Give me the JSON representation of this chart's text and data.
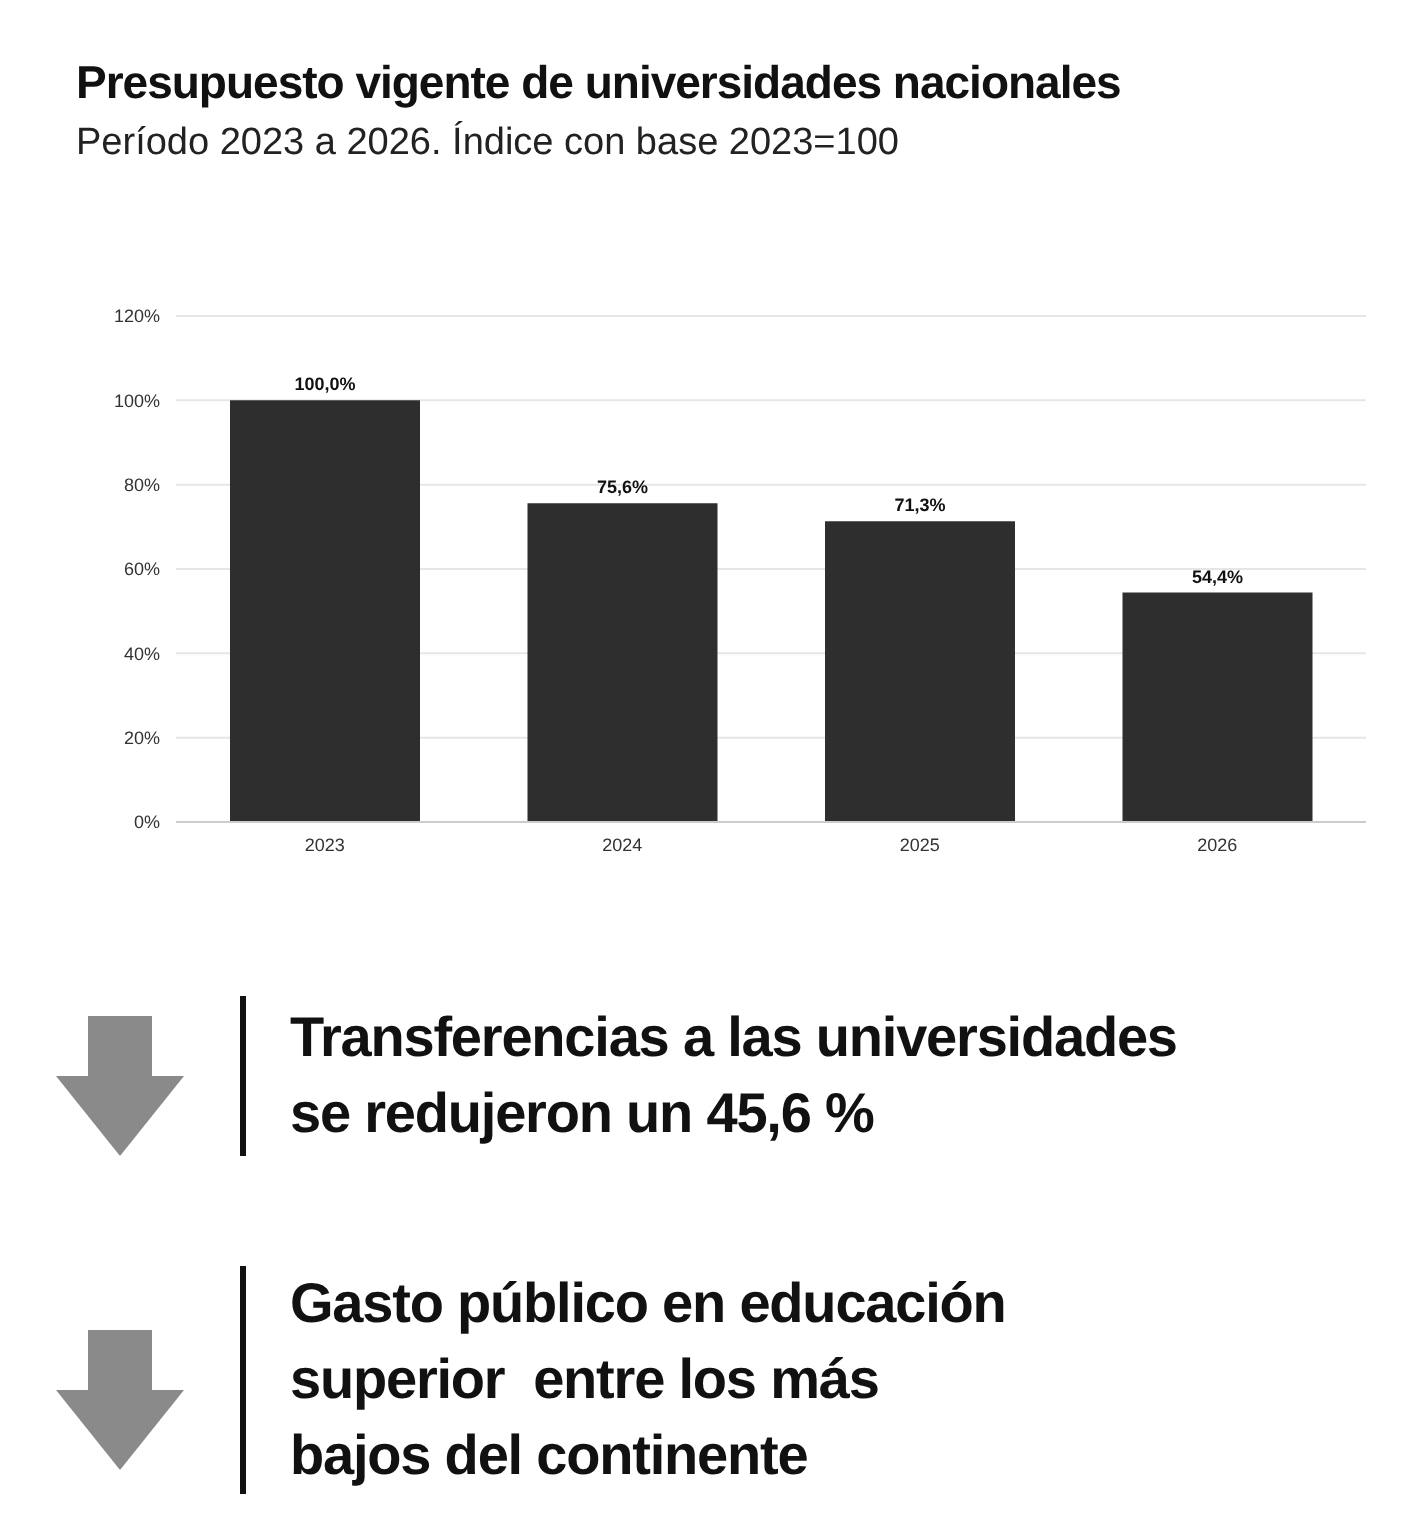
{
  "chart_data": {
    "type": "bar",
    "title": "Presupuesto vigente de universidades nacionales",
    "subtitle": "Período 2023 a 2026. Índice con base 2023=100",
    "categories": [
      "2023",
      "2024",
      "2025",
      "2026"
    ],
    "values": [
      100,
      75.6,
      71.3,
      54.4
    ],
    "value_labels": [
      "100,0%",
      "75,6%",
      "71,3%",
      "54,4%"
    ],
    "color": "#2e2e2e",
    "ylim": [
      0,
      120
    ],
    "yticks": [
      {
        "value": 0,
        "label": "0%"
      },
      {
        "value": 20,
        "label": "20%"
      },
      {
        "value": 40,
        "label": "40%"
      },
      {
        "value": 60,
        "label": "60%"
      },
      {
        "value": 80,
        "label": "80%"
      },
      {
        "value": 100,
        "label": "100%"
      },
      {
        "value": 120,
        "label": "120%"
      }
    ],
    "grid": "y",
    "annotations": [
      "Transferencias a las universidades\nse redujeron un 45,6 %",
      "Gasto público en educación\nsuperior  entre los más\nbajos del continente"
    ]
  }
}
